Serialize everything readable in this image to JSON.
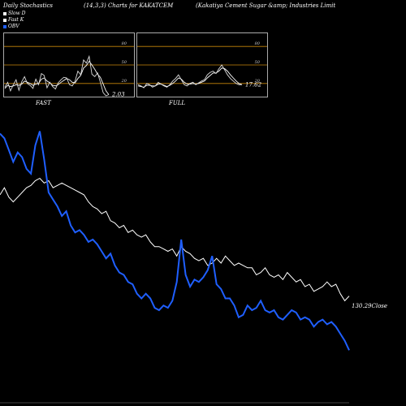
{
  "header": {
    "left": "Daily Stochastics",
    "center": "(14,3,3) Charts for KAKATCEM",
    "right": "(Kakatiya  Cement Sugar &amp; Industries Limit"
  },
  "legend": [
    {
      "label": "Slow  D",
      "color": "#ffffff"
    },
    {
      "label": "Fast K",
      "color": "#ffffff"
    },
    {
      "label": "OBV",
      "color": "#1f5fff"
    }
  ],
  "colors": {
    "obv": "#1f5fff",
    "close": "#ffffff",
    "level": "#c8860a",
    "bg": "#000000"
  },
  "panels": {
    "fast": {
      "label": "FAST",
      "value_label": "2.03",
      "levels": [
        "80",
        "50",
        "20"
      ],
      "fast_k": [
        14,
        22,
        8,
        18,
        26,
        9,
        23,
        31,
        20,
        17,
        12,
        27,
        18,
        36,
        33,
        13,
        22,
        15,
        11,
        21,
        26,
        30,
        29,
        18,
        16,
        24,
        40,
        34,
        58,
        53,
        64,
        35,
        31,
        37,
        22,
        5,
        0,
        2
      ],
      "slow_d": [
        12,
        17,
        15,
        16,
        18,
        17,
        19,
        24,
        22,
        20,
        17,
        19,
        20,
        27,
        29,
        24,
        21,
        17,
        16,
        18,
        22,
        25,
        28,
        26,
        22,
        21,
        28,
        33,
        45,
        49,
        56,
        50,
        43,
        35,
        30,
        19,
        8,
        2
      ]
    },
    "full": {
      "label": "FULL",
      "value_label": "17.62",
      "levels": [
        "80",
        "50",
        "20"
      ],
      "fast_k": [
        18,
        16,
        13,
        20,
        18,
        14,
        16,
        22,
        19,
        16,
        14,
        18,
        24,
        28,
        34,
        26,
        18,
        16,
        20,
        22,
        18,
        21,
        24,
        26,
        34,
        38,
        40,
        36,
        44,
        50,
        42,
        34,
        28,
        24,
        20,
        18,
        18
      ],
      "slow_d": [
        16,
        15,
        14,
        17,
        17,
        16,
        16,
        19,
        19,
        17,
        15,
        17,
        20,
        24,
        29,
        27,
        22,
        19,
        19,
        20,
        19,
        20,
        22,
        24,
        29,
        33,
        37,
        37,
        40,
        45,
        44,
        40,
        34,
        29,
        24,
        20,
        18
      ]
    }
  },
  "main": {
    "close_label": "130.29Close",
    "close": [
      69,
      72,
      68,
      66,
      68,
      70,
      72,
      73,
      75,
      76,
      74,
      75,
      72,
      73,
      74,
      73,
      72,
      71,
      70,
      69,
      66,
      64,
      63,
      61,
      62,
      58,
      57,
      55,
      56,
      53,
      54,
      52,
      51,
      52,
      49,
      47,
      47,
      46,
      45,
      46,
      43,
      47,
      45,
      44,
      42,
      41,
      42,
      39,
      40,
      42,
      40,
      43,
      41,
      39,
      40,
      39,
      38,
      38,
      35,
      36,
      38,
      35,
      34,
      35,
      33,
      36,
      34,
      32,
      33,
      30,
      31,
      28,
      29,
      30,
      32,
      30,
      31,
      27,
      24,
      26
    ],
    "obv": [
      95,
      93,
      88,
      83,
      87,
      85,
      80,
      78,
      90,
      96,
      84,
      70,
      67,
      64,
      60,
      62,
      56,
      53,
      54,
      52,
      49,
      50,
      48,
      45,
      42,
      44,
      39,
      36,
      35,
      32,
      31,
      27,
      25,
      27,
      25,
      21,
      20,
      22,
      21,
      24,
      32,
      50,
      35,
      30,
      33,
      32,
      34,
      37,
      43,
      31,
      29,
      25,
      25,
      22,
      17,
      18,
      22,
      20,
      21,
      24,
      20,
      19,
      20,
      17,
      16,
      18,
      20,
      19,
      16,
      17,
      16,
      13,
      15,
      16,
      14,
      15,
      13,
      10,
      7,
      3
    ]
  }
}
